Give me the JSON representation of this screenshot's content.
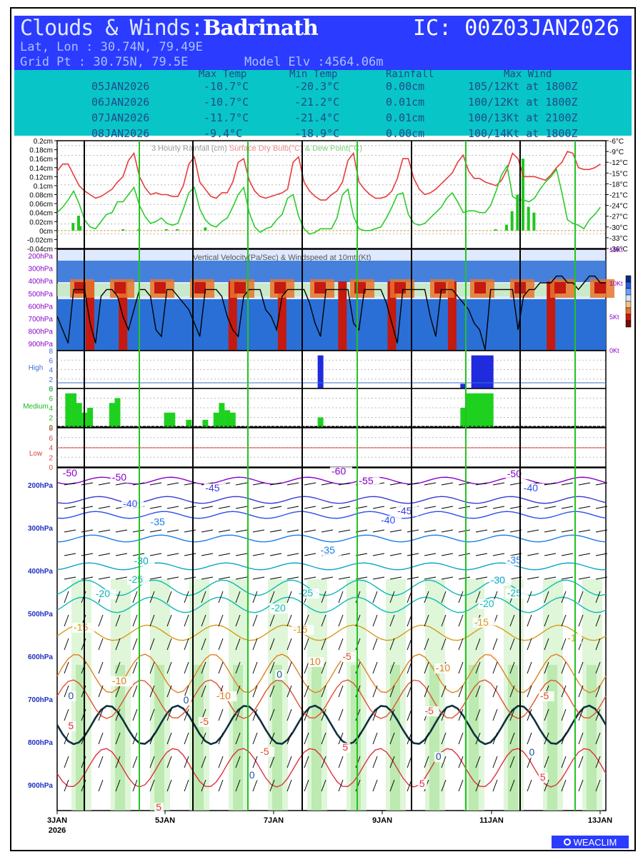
{
  "header": {
    "title_prefix": "Clouds & Winds:",
    "station": "Badrinath",
    "ic": "IC: 00Z03JAN2026",
    "latlon": "Lat, Lon : 30.74N, 79.49E",
    "gridpt": "Grid Pt  : 30.75N, 79.5E",
    "model_elv": "Model Elv :4564.06m"
  },
  "summary": {
    "columns": [
      "Max Temp",
      "Min Temp",
      "Rainfall",
      "Max Wind"
    ],
    "rows": [
      {
        "date": "05JAN2026",
        "max": "-10.7°C",
        "min": "-20.3°C",
        "rain": "0.00cm",
        "wind": "105/12Kt at 1800Z"
      },
      {
        "date": "06JAN2026",
        "max": "-10.7°C",
        "min": "-21.2°C",
        "rain": "0.01cm",
        "wind": "100/12Kt at 1800Z"
      },
      {
        "date": "07JAN2026",
        "max": "-11.7°C",
        "min": "-21.4°C",
        "rain": "0.01cm",
        "wind": "100/13Kt at 2100Z"
      },
      {
        "date": "08JAN2026",
        "max": "-9.4°C",
        "min": "-18.9°C",
        "rain": "0.00cm",
        "wind": "100/14Kt at 1800Z"
      }
    ]
  },
  "colors": {
    "blue": "#2b3bff",
    "cyan": "#08c5c8",
    "temp": "#e83b3b",
    "dew": "#2ccc2c",
    "rain": "#1fc61f",
    "high": "#1f2bdd",
    "medium": "#1fd11f",
    "green_line": "#22c422",
    "purple": "#8b00c8",
    "press_label": "#1d2fbf",
    "updraft": "#c41a10",
    "downdraft": "#2a6fd6"
  },
  "chart_data": [
    {
      "type": "line",
      "title": "3 Hourly Rainfall (cm) Surface Dry Bulb(°C) & Dew Point(°C)",
      "title_rain": "3 Hourly Rainfall (cm)",
      "title_temp": "Surface Dry Bulb(°C)",
      "title_dew": "& Dew Point(°C)",
      "ylabel_left_ticks": [
        "0.2cm",
        "0.18cm",
        "0.16cm",
        "0.14cm",
        "0.12cm",
        "0.1cm",
        "0.08cm",
        "0.06cm",
        "0.04cm",
        "0.02cm",
        "0cm",
        "-0.02cm",
        "-0.04cm"
      ],
      "ylabel_right_ticks": [
        "-6°C",
        "-9°C",
        "-12°C",
        "-15°C",
        "-18°C",
        "-21°C",
        "-24°C",
        "-27°C",
        "-30°C",
        "-33°C",
        "-36°C"
      ],
      "ylim_rain": [
        -0.04,
        0.2
      ],
      "ylim_temp": [
        -36,
        -6
      ],
      "series": [
        {
          "name": "Surface Dry Bulb(°C)",
          "values": [
            -14.5,
            -12.5,
            -12.5,
            -15.5,
            -18.5,
            -20,
            -21,
            -22,
            -21.5,
            -20.5,
            -19.5,
            -17.5,
            -16,
            -11.5,
            -9.5,
            -16,
            -19,
            -21,
            -20.5,
            -21,
            -21,
            -21.5,
            -21.5,
            -18.5,
            -12.5,
            -10.5,
            -17.5,
            -19.5,
            -21.5,
            -22,
            -20.5,
            -20.5,
            -17.5,
            -12,
            -11,
            -17,
            -20,
            -21.5,
            -22,
            -21.5,
            -21,
            -20.5,
            -19.5,
            -12,
            -10.5,
            -17.5,
            -20,
            -21.5,
            -22.5,
            -22.5,
            -21,
            -20,
            -17.5,
            -11.5,
            -9.5,
            -17.5,
            -19.5,
            -21,
            -22,
            -22,
            -21.5,
            -20,
            -16.5,
            -11,
            -11,
            -16.5,
            -19.5,
            -21,
            -20.5,
            -19.5,
            -18,
            -16.5,
            -15,
            -12,
            -10,
            -14.5,
            -16.5,
            -16.5,
            -17.5,
            -18,
            -18.5,
            -17,
            -14,
            -9.5,
            -11,
            -16,
            -16,
            -16,
            -16.5,
            -17,
            -15.5,
            -13.5,
            -12,
            -9,
            -9.5,
            -13.5,
            -14,
            -14,
            -13.5,
            -12.5
          ]
        },
        {
          "name": "Dew Point(°C)",
          "values": [
            -26,
            -24.5,
            -22.5,
            -20,
            -23.5,
            -28,
            -30,
            -30.5,
            -28.5,
            -26.5,
            -26,
            -23,
            -23,
            -21,
            -19,
            -24,
            -27,
            -29,
            -28.5,
            -27.5,
            -29,
            -29.5,
            -29,
            -25,
            -20.5,
            -19,
            -25,
            -28,
            -29.5,
            -30,
            -28.5,
            -27.5,
            -24.5,
            -21,
            -19,
            -26,
            -30,
            -31.5,
            -30.5,
            -30,
            -28,
            -26.5,
            -22,
            -21,
            -27,
            -30.5,
            -32,
            -31.5,
            -30.5,
            -30.5,
            -30.5,
            -27.5,
            -21,
            -19.5,
            -27,
            -30.5,
            -31,
            -31,
            -30.5,
            -30,
            -27.5,
            -24.5,
            -21,
            -20.5,
            -26.5,
            -29,
            -29.5,
            -29,
            -27.5,
            -26,
            -24.5,
            -22,
            -20.5,
            -23,
            -26,
            -25.5,
            -25.5,
            -26,
            -26,
            -24,
            -20,
            -15.5,
            -13,
            -21.5,
            -22.5,
            -22.5,
            -23,
            -22,
            -19.5,
            -17.5,
            -16,
            -14,
            -20.5,
            -28,
            -29,
            -29.5,
            -30.5,
            -28,
            -26.5,
            -24.5
          ]
        },
        {
          "name": "3 Hourly Rainfall (cm)",
          "values": [
            0.0,
            0.0,
            0.0,
            0.0,
            0.0,
            0.0,
            0.0,
            0.0,
            0.0,
            0.0,
            0.0,
            0.0,
            0.0,
            0.0,
            0.0,
            0.0,
            0.0,
            0.0,
            0.0,
            0.0,
            0.0,
            0.0,
            0.0,
            0.0,
            0.0,
            0.0,
            0.0,
            0.0,
            0.0,
            0.0,
            0.0,
            0.0,
            0.0,
            0.0,
            0.0,
            0.0,
            0.0,
            0.0,
            0.0,
            0.0,
            0.0,
            0.0,
            0.0,
            0.0,
            0.0,
            0.0,
            0.0,
            0.0,
            0.0,
            0.0,
            0.0,
            0.0,
            0.0,
            0.0,
            0.0,
            0.0,
            0.0,
            0.0,
            0.0,
            0.0,
            0.0,
            0.0,
            0.0,
            0.0,
            0.0,
            0.0,
            0.0,
            0.0,
            0.0,
            0.0,
            0.0,
            0.0,
            0.0,
            0.0,
            0.0,
            0.0,
            0.0,
            0.0,
            0.0,
            0.0,
            0.0,
            0.0,
            0.0,
            0.0,
            0.0,
            0.0,
            0.0,
            0.0,
            0.0,
            0.0,
            0.0,
            0.0,
            0.0,
            0.0,
            0.0,
            0.0,
            0.0,
            0.0,
            0.0,
            0.0,
            0.0
          ]
        }
      ],
      "rain_bars": [
        {
          "x": 2.9,
          "v": 0.017
        },
        {
          "x": 3.9,
          "v": 0.033
        },
        {
          "x": 4.2,
          "v": 0.01
        },
        {
          "x": 12.0,
          "v": 0.003
        },
        {
          "x": 14.9,
          "v": 0.003
        },
        {
          "x": 19.9,
          "v": 0.003
        },
        {
          "x": 21.9,
          "v": 0.003
        },
        {
          "x": 27.0,
          "v": 0.007
        },
        {
          "x": 79.9,
          "v": 0.003
        },
        {
          "x": 81.9,
          "v": 0.013
        },
        {
          "x": 82.9,
          "v": 0.043
        },
        {
          "x": 83.9,
          "v": 0.08
        },
        {
          "x": 84.9,
          "v": 0.16
        },
        {
          "x": 85.9,
          "v": 0.053
        },
        {
          "x": 86.9,
          "v": 0.04
        }
      ]
    },
    {
      "type": "heatmap",
      "title": "Vertical Velocity(Pa/Sec) & Windspeed at 10mtr(Kt)",
      "y_ticks": [
        "200hPa",
        "300hPa",
        "400hPa",
        "500hPa",
        "600hPa",
        "700hPa",
        "800hPa",
        "900hPa"
      ],
      "right_ticks": [
        "15Kt",
        "10Kt",
        "5Kt",
        "0Kt"
      ],
      "windspeed_kt": [
        5,
        3,
        1,
        9,
        9,
        9,
        4,
        1,
        8,
        9,
        9,
        8,
        5,
        3,
        6,
        9,
        9,
        8,
        3,
        2,
        9,
        9,
        8,
        7,
        6,
        4,
        2,
        9,
        9,
        9,
        8,
        5,
        3,
        2,
        8,
        9,
        9,
        9,
        6,
        5,
        3,
        8,
        9,
        9,
        9,
        9,
        7,
        4,
        2,
        9,
        9,
        9,
        9,
        9,
        4,
        3,
        9,
        9,
        9,
        9,
        7,
        4,
        1,
        9,
        9,
        9,
        9,
        9,
        5,
        2,
        9,
        9,
        9,
        8,
        7,
        6,
        4,
        3,
        0,
        9,
        9,
        9,
        9,
        9,
        3,
        8,
        9,
        9,
        10,
        10,
        10,
        11,
        11,
        10,
        10,
        9,
        10,
        11,
        11,
        10,
        10
      ]
    },
    {
      "type": "bar",
      "title": "High",
      "ylim": [
        0,
        8
      ],
      "y_ticks": [
        "0",
        "2",
        "4",
        "6",
        "8"
      ],
      "bars": [
        {
          "x": 48,
          "v": 7
        },
        {
          "x": 74,
          "v": 1
        },
        {
          "x": 76,
          "v": 7
        },
        {
          "x": 77,
          "v": 7
        },
        {
          "x": 78,
          "v": 7
        },
        {
          "x": 79,
          "v": 7
        }
      ]
    },
    {
      "type": "bar",
      "title": "Medium",
      "ylim": [
        0,
        8
      ],
      "y_ticks": [
        "0",
        "2",
        "4",
        "6",
        "8"
      ],
      "bars": [
        {
          "x": 2,
          "v": 7
        },
        {
          "x": 3,
          "v": 7
        },
        {
          "x": 4,
          "v": 5
        },
        {
          "x": 5,
          "v": 3
        },
        {
          "x": 6,
          "v": 4
        },
        {
          "x": 10,
          "v": 5
        },
        {
          "x": 11,
          "v": 6
        },
        {
          "x": 20,
          "v": 3
        },
        {
          "x": 21,
          "v": 3
        },
        {
          "x": 24,
          "v": 1.5
        },
        {
          "x": 27,
          "v": 1.5
        },
        {
          "x": 29,
          "v": 3
        },
        {
          "x": 30,
          "v": 5
        },
        {
          "x": 31,
          "v": 3.5
        },
        {
          "x": 32,
          "v": 3
        },
        {
          "x": 48,
          "v": 2
        },
        {
          "x": 74,
          "v": 4
        },
        {
          "x": 75,
          "v": 7
        },
        {
          "x": 76,
          "v": 7
        },
        {
          "x": 77,
          "v": 7
        },
        {
          "x": 78,
          "v": 7
        },
        {
          "x": 79,
          "v": 7
        }
      ]
    },
    {
      "type": "bar",
      "title": "Low",
      "ylim": [
        0,
        8
      ],
      "y_ticks": [
        "0",
        "2",
        "4",
        "6",
        "8"
      ],
      "bars": []
    },
    {
      "type": "area",
      "title": "Temperature(°C), Relative Humidity & Winds",
      "y_ticks": [
        "200hPa",
        "300hPa",
        "400hPa",
        "500hPa",
        "600hPa",
        "700hPa",
        "800hPa",
        "900hPa"
      ],
      "contour_labels": [
        {
          "text": "-60",
          "x": 50,
          "p": 176,
          "c": "#8b00c8"
        },
        {
          "text": "-50",
          "x": 1,
          "p": 180,
          "c": "#8b00c8"
        },
        {
          "text": "-50",
          "x": 10,
          "p": 190,
          "c": "#8b00c8"
        },
        {
          "text": "-50",
          "x": 82,
          "p": 182,
          "c": "#8b00c8"
        },
        {
          "text": "-55",
          "x": 55,
          "p": 198,
          "c": "#8b00c8"
        },
        {
          "text": "-45",
          "x": 27,
          "p": 215,
          "c": "#3a3ad8"
        },
        {
          "text": "-45",
          "x": 62,
          "p": 268,
          "c": "#3a3ad8"
        },
        {
          "text": "-40",
          "x": 12,
          "p": 252,
          "c": "#2a4ff0"
        },
        {
          "text": "-40",
          "x": 85,
          "p": 215,
          "c": "#2a4ff0"
        },
        {
          "text": "-40",
          "x": 59,
          "p": 290,
          "c": "#2a4ff0"
        },
        {
          "text": "-35",
          "x": 17,
          "p": 294,
          "c": "#1a7de8"
        },
        {
          "text": "-35",
          "x": 48,
          "p": 360,
          "c": "#1a7de8"
        },
        {
          "text": "-35",
          "x": 82,
          "p": 383,
          "c": "#1a7de8"
        },
        {
          "text": "-30",
          "x": 14,
          "p": 385,
          "c": "#0aa6c8"
        },
        {
          "text": "-30",
          "x": 79,
          "p": 430,
          "c": "#0aa6c8"
        },
        {
          "text": "-25",
          "x": 13,
          "p": 428,
          "c": "#10b8b8"
        },
        {
          "text": "-25",
          "x": 44,
          "p": 460,
          "c": "#10b8b8"
        },
        {
          "text": "-25",
          "x": 82,
          "p": 460,
          "c": "#10b8b8"
        },
        {
          "text": "-20",
          "x": 7,
          "p": 462,
          "c": "#10b8b8"
        },
        {
          "text": "-20",
          "x": 39,
          "p": 495,
          "c": "#10b8b8"
        },
        {
          "text": "-20",
          "x": 77,
          "p": 485,
          "c": "#10b8b8"
        },
        {
          "text": "-15",
          "x": 3,
          "p": 540,
          "c": "#d89a1a"
        },
        {
          "text": "-15",
          "x": 43,
          "p": 545,
          "c": "#d89a1a"
        },
        {
          "text": "-15",
          "x": 76,
          "p": 528,
          "c": "#d89a1a"
        },
        {
          "text": "-1",
          "x": 93,
          "p": 565,
          "c": "#d89a1a"
        },
        {
          "text": "-10",
          "x": 10,
          "p": 665,
          "c": "#e08020"
        },
        {
          "text": "-10",
          "x": 29,
          "p": 700,
          "c": "#e08020"
        },
        {
          "text": "-10",
          "x": 69,
          "p": 635,
          "c": "#e08020"
        },
        {
          "text": "10",
          "x": 46,
          "p": 620,
          "c": "#e08020"
        },
        {
          "text": "-5",
          "x": 26,
          "p": 760,
          "c": "#e05030"
        },
        {
          "text": "-5",
          "x": 37,
          "p": 830,
          "c": "#e05030"
        },
        {
          "text": "-5",
          "x": 52,
          "p": 608,
          "c": "#e05030"
        },
        {
          "text": "-5",
          "x": 67,
          "p": 735,
          "c": "#e05030"
        },
        {
          "text": "-5",
          "x": 88,
          "p": 700,
          "c": "#e05030"
        },
        {
          "text": "0",
          "x": 2,
          "p": 700,
          "c": "#2050a0"
        },
        {
          "text": "0",
          "x": 23,
          "p": 710,
          "c": "#2050a0"
        },
        {
          "text": "0",
          "x": 40,
          "p": 650,
          "c": "#2050a0"
        },
        {
          "text": "0",
          "x": 69,
          "p": 842,
          "c": "#2050a0"
        },
        {
          "text": "0",
          "x": 35,
          "p": 885,
          "c": "#2050a0"
        },
        {
          "text": "0",
          "x": 86,
          "p": 832,
          "c": "#2050a0"
        },
        {
          "text": "5",
          "x": 2,
          "p": 770,
          "c": "#e03040"
        },
        {
          "text": "5",
          "x": 52,
          "p": 820,
          "c": "#e03040"
        },
        {
          "text": "5",
          "x": 88,
          "p": 890,
          "c": "#e03040"
        },
        {
          "text": "5",
          "x": 66,
          "p": 905,
          "c": "#e03040"
        },
        {
          "text": "5",
          "x": 18,
          "p": 960,
          "c": "#e03040"
        }
      ]
    }
  ],
  "xaxis": {
    "labels": [
      "3JAN",
      "5JAN",
      "7JAN",
      "9JAN",
      "11JAN",
      "13JAN"
    ],
    "year": "2026"
  },
  "logo": {
    "text": "WEACLIM"
  }
}
